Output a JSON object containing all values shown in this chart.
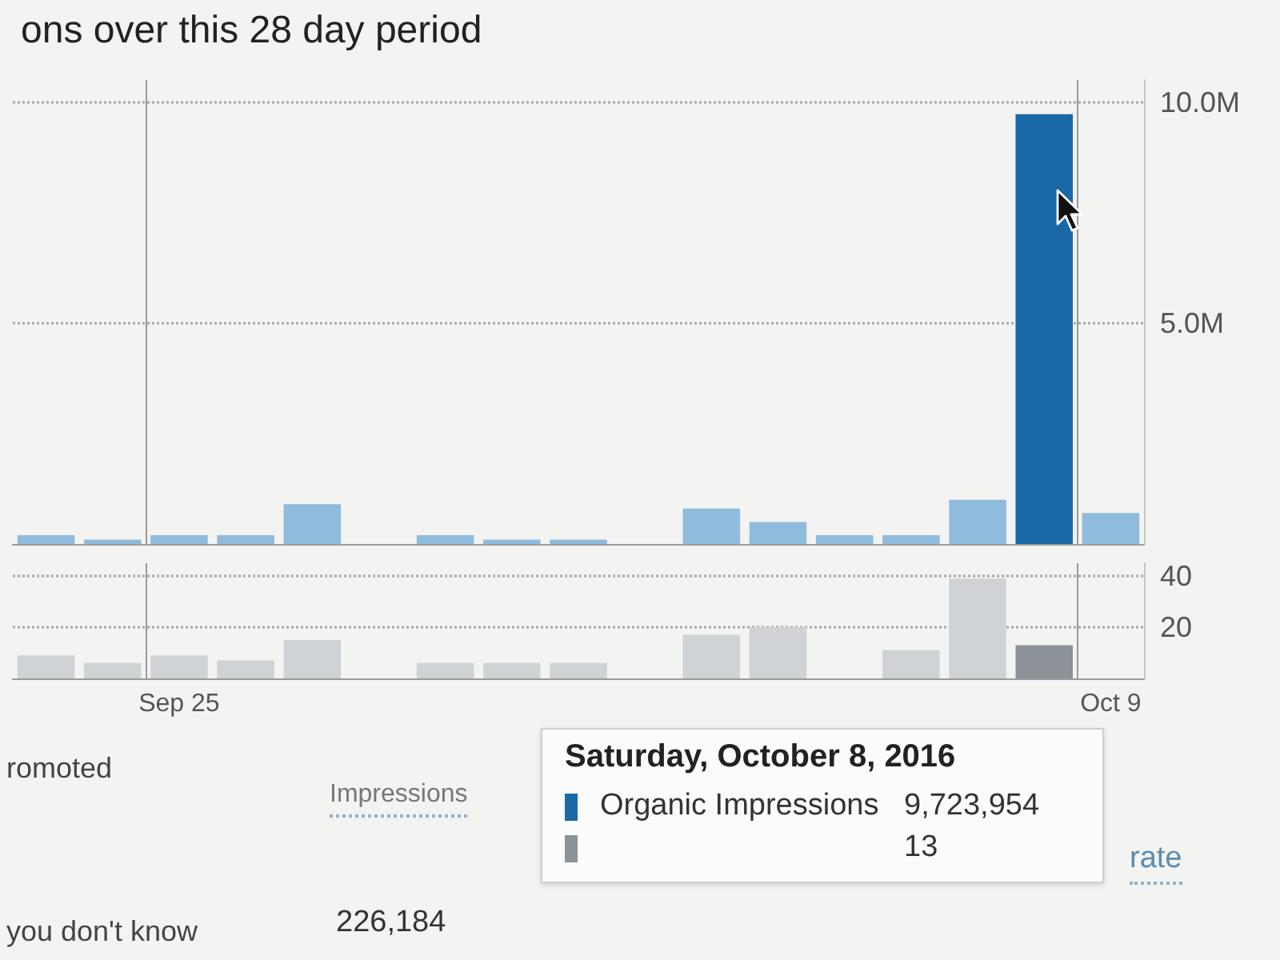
{
  "chart_data": [
    {
      "type": "bar",
      "title": "ons over this 28 day period",
      "categories": [
        null,
        null,
        null,
        null,
        null,
        null,
        null,
        null,
        null,
        null,
        null,
        null,
        null,
        null,
        null,
        null,
        null
      ],
      "series": [
        {
          "name": "Organic Impressions",
          "values": [
            200000,
            100000,
            200000,
            200000,
            900000,
            0,
            200000,
            100000,
            100000,
            0,
            800000,
            500000,
            200000,
            200000,
            1000000,
            9723954,
            700000
          ],
          "colors": [
            "#8fbbdc",
            "#8fbbdc",
            "#8fbbdc",
            "#8fbbdc",
            "#8fbbdc",
            "#8fbbdc",
            "#8fbbdc",
            "#8fbbdc",
            "#8fbbdc",
            "#8fbbdc",
            "#8fbbdc",
            "#8fbbdc",
            "#8fbbdc",
            "#8fbbdc",
            "#8fbbdc",
            "#1a68a8",
            "#8fbbdc"
          ]
        }
      ],
      "ylim": [
        0,
        10500000
      ],
      "yticks": [
        {
          "value": 5000000,
          "label": "5.0M"
        },
        {
          "value": 10000000,
          "label": "10.0M"
        }
      ],
      "grid": true,
      "tick_labels": "y",
      "legend": "bottom",
      "legend_title": "Saturday, October 8, 2016",
      "annotations": [
        "9,723,954"
      ]
    },
    {
      "type": "bar",
      "categories": [
        null,
        null,
        "Sep 25",
        null,
        null,
        null,
        null,
        null,
        null,
        null,
        null,
        null,
        null,
        null,
        null,
        null,
        "Oct 9"
      ],
      "series": [
        {
          "values": [
            9,
            6,
            9,
            7,
            15,
            0,
            6,
            6,
            6,
            0,
            17,
            20,
            0,
            11,
            39,
            13,
            0
          ],
          "colors": [
            "#cfd3d6",
            "#cfd3d6",
            "#cfd3d6",
            "#cfd3d6",
            "#cfd3d6",
            "#cfd3d6",
            "#cfd3d6",
            "#cfd3d6",
            "#cfd3d6",
            "#cfd3d6",
            "#cfd3d6",
            "#cfd3d6",
            "#cfd3d6",
            "#cfd3d6",
            "#cfd3d6",
            "#8c9297",
            "#cfd3d6"
          ]
        }
      ],
      "ylim": [
        0,
        45
      ],
      "yticks": [
        20,
        40
      ],
      "grid": true,
      "annotations": [
        "13",
        "romoted",
        "Impressions",
        "rate",
        "you don't know",
        "226,184"
      ]
    }
  ]
}
